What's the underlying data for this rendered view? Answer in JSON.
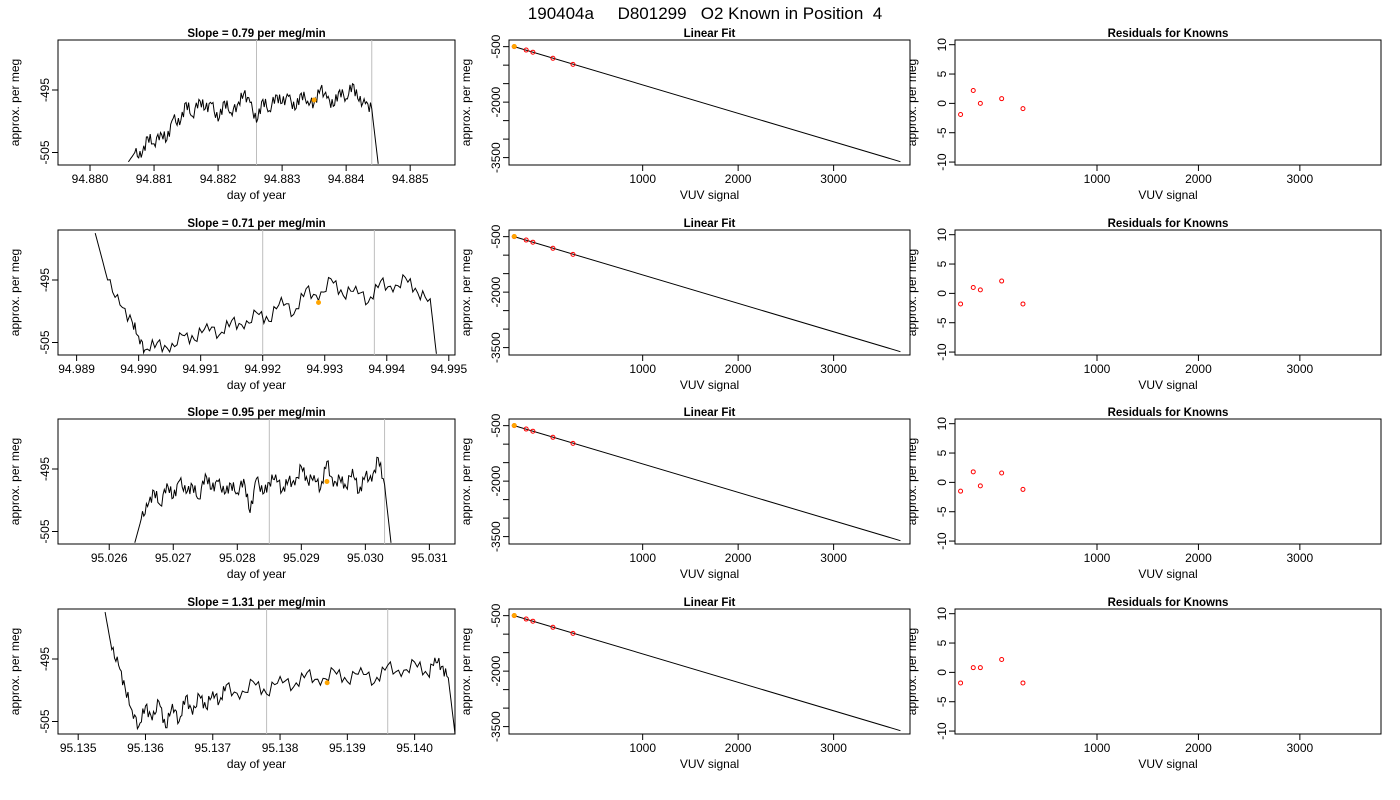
{
  "figure": {
    "title": "190404a     D801299   O2 Known in Position  4"
  },
  "colors": {
    "trace": "#000000",
    "orange": "#FFA500",
    "residual": "#FF0000",
    "vline": "#BEBEBE",
    "frame": "#000000"
  },
  "chart_data": [
    {
      "type": "line",
      "panel": "timeseries-1",
      "title": "Slope =  0.79  per meg/min",
      "xlabel": "day of year",
      "ylabel": "approx. per meg",
      "xlim": [
        94.8795,
        94.8857
      ],
      "ylim": [
        -507,
        -487
      ],
      "xticks": [
        94.88,
        94.881,
        94.882,
        94.883,
        94.884,
        94.885
      ],
      "xtick_labels": [
        "94.880",
        "94.881",
        "94.882",
        "94.883",
        "94.884",
        "94.885"
      ],
      "yticks": [
        -495,
        -505
      ],
      "ytick_labels": [
        "-495",
        "-505"
      ],
      "vlines": [
        94.8826,
        94.8844
      ],
      "trace_start": 94.8806,
      "trace_end": 94.8845,
      "series": [
        {
          "x": [
            94.8806,
            94.8807,
            94.8808,
            94.8809,
            94.881,
            94.8811,
            94.8812,
            94.8813,
            94.8814,
            94.8815,
            94.8816,
            94.8817,
            94.8818,
            94.8819,
            94.882,
            94.8821,
            94.8822,
            94.8823,
            94.8824,
            94.8825,
            94.8826,
            94.8827,
            94.8828,
            94.8829,
            94.883,
            94.8831,
            94.8832,
            94.8833,
            94.8834,
            94.8835,
            94.8836,
            94.8837,
            94.8838,
            94.8839,
            94.884,
            94.8841,
            94.8842,
            94.8843,
            94.8844,
            94.8845
          ],
          "y": [
            -506.5,
            -505.0,
            -505.8,
            -502.5,
            -503.6,
            -501.8,
            -503.0,
            -499.5,
            -500.6,
            -497.0,
            -499.2,
            -496.5,
            -498.0,
            -497.2,
            -500.0,
            -496.8,
            -498.6,
            -497.4,
            -495.6,
            -497.0,
            -500.2,
            -496.5,
            -498.3,
            -495.8,
            -497.1,
            -496.0,
            -498.2,
            -495.5,
            -496.8,
            -497.1,
            -494.8,
            -496.3,
            -497.6,
            -495.0,
            -496.4,
            -494.0,
            -496.8,
            -497.2,
            -498.0,
            -506.8
          ]
        }
      ],
      "markers": [
        {
          "x": 94.8835,
          "y": -496.6
        }
      ]
    },
    {
      "type": "scatter",
      "panel": "linear-fit-1",
      "title": "Linear Fit",
      "xlabel": "VUV signal",
      "ylabel": "approx. per meg",
      "xlim": [
        -400,
        3800
      ],
      "ylim": [
        -3700,
        -320
      ],
      "xticks": [
        1000,
        2000,
        3000
      ],
      "xtick_labels": [
        "1000",
        "2000",
        "3000"
      ],
      "yticks": [
        -500,
        -2000,
        -3500
      ],
      "ytick_labels": [
        "-500",
        "-2000",
        "-3500"
      ],
      "fit_line": {
        "x": [
          -350,
          3700
        ],
        "y": [
          -496,
          -3610
        ]
      },
      "points": {
        "x": [
          -345,
          -220,
          -150,
          60,
          270
        ],
        "y": [
          -498,
          -592,
          -650,
          -815,
          -980
        ]
      },
      "highlight": {
        "x": [
          -345
        ],
        "y": [
          -496
        ]
      }
    },
    {
      "type": "scatter",
      "panel": "residuals-1",
      "title": "Residuals for Knowns",
      "xlabel": "VUV signal",
      "ylabel": "approx. per meg",
      "xlim": [
        -400,
        3800
      ],
      "ylim": [
        -10.5,
        10.8
      ],
      "xticks": [
        1000,
        2000,
        3000
      ],
      "xtick_labels": [
        "1000",
        "2000",
        "3000"
      ],
      "yticks": [
        -10,
        -5,
        0,
        5,
        10
      ],
      "ytick_labels": [
        "-10",
        "-5",
        "0",
        "5",
        "10"
      ],
      "points": {
        "x": [
          -345,
          -220,
          -150,
          60,
          270
        ],
        "y": [
          -1.9,
          2.2,
          0.0,
          0.8,
          -0.9
        ]
      }
    },
    {
      "type": "line",
      "panel": "timeseries-2",
      "title": "Slope =  0.71  per meg/min",
      "xlabel": "day of year",
      "ylabel": "approx. per meg",
      "xlim": [
        94.9887,
        94.9951
      ],
      "ylim": [
        -507,
        -487
      ],
      "xticks": [
        94.989,
        94.99,
        94.991,
        94.992,
        94.993,
        94.994,
        94.995
      ],
      "xtick_labels": [
        "94.989",
        "94.990",
        "94.991",
        "94.992",
        "94.993",
        "94.994",
        "94.995"
      ],
      "yticks": [
        -495,
        -505
      ],
      "ytick_labels": [
        "-495",
        "-505"
      ],
      "vlines": [
        94.992,
        94.9938
      ],
      "trace_start": 94.9893,
      "trace_end": 94.9948,
      "series": [
        {
          "x": [
            94.9893,
            94.9895,
            94.9897,
            94.9899,
            94.99,
            94.9901,
            94.9903,
            94.9905,
            94.9907,
            94.9909,
            94.9911,
            94.9913,
            94.9915,
            94.9917,
            94.9919,
            94.9921,
            94.9923,
            94.9925,
            94.9927,
            94.9929,
            94.9931,
            94.9933,
            94.9935,
            94.9937,
            94.9939,
            94.9941,
            94.9943,
            94.9945,
            94.9947,
            94.9948
          ],
          "y": [
            -487.5,
            -495.0,
            -499.0,
            -501.8,
            -504.0,
            -506.2,
            -505.0,
            -506.5,
            -503.8,
            -504.6,
            -502.0,
            -503.8,
            -501.5,
            -502.8,
            -500.2,
            -501.6,
            -497.8,
            -500.5,
            -496.4,
            -498.3,
            -494.8,
            -497.5,
            -496.0,
            -498.6,
            -495.2,
            -496.9,
            -494.6,
            -497.1,
            -498.0,
            -506.8
          ]
        }
      ],
      "markers": [
        {
          "x": 94.9929,
          "y": -498.6
        }
      ]
    },
    {
      "type": "scatter",
      "panel": "linear-fit-2",
      "title": "Linear Fit",
      "xlabel": "VUV signal",
      "ylabel": "approx. per meg",
      "xlim": [
        -400,
        3800
      ],
      "ylim": [
        -3700,
        -320
      ],
      "xticks": [
        1000,
        2000,
        3000
      ],
      "xtick_labels": [
        "1000",
        "2000",
        "3000"
      ],
      "yticks": [
        -500,
        -2000,
        -3500
      ],
      "ytick_labels": [
        "-500",
        "-2000",
        "-3500"
      ],
      "fit_line": {
        "x": [
          -350,
          3700
        ],
        "y": [
          -496,
          -3610
        ]
      },
      "points": {
        "x": [
          -345,
          -220,
          -150,
          60,
          270
        ],
        "y": [
          -498,
          -592,
          -650,
          -815,
          -980
        ]
      },
      "highlight": {
        "x": [
          -345
        ],
        "y": [
          -496
        ]
      }
    },
    {
      "type": "scatter",
      "panel": "residuals-2",
      "title": "Residuals for Knowns",
      "xlabel": "VUV signal",
      "ylabel": "approx. per meg",
      "xlim": [
        -400,
        3800
      ],
      "ylim": [
        -10.5,
        10.8
      ],
      "xticks": [
        1000,
        2000,
        3000
      ],
      "xtick_labels": [
        "1000",
        "2000",
        "3000"
      ],
      "yticks": [
        -10,
        -5,
        0,
        5,
        10
      ],
      "ytick_labels": [
        "-10",
        "-5",
        "0",
        "5",
        "10"
      ],
      "points": {
        "x": [
          -345,
          -220,
          -150,
          60,
          270
        ],
        "y": [
          -1.8,
          1.0,
          0.6,
          2.1,
          -1.8
        ]
      }
    },
    {
      "type": "line",
      "panel": "timeseries-3",
      "title": "Slope =  0.95  per meg/min",
      "xlabel": "day of year",
      "ylabel": "approx. per meg",
      "xlim": [
        95.0252,
        95.0314
      ],
      "ylim": [
        -507,
        -487
      ],
      "xticks": [
        95.026,
        95.027,
        95.028,
        95.029,
        95.03,
        95.031
      ],
      "xtick_labels": [
        "95.026",
        "95.027",
        "95.028",
        "95.029",
        "95.030",
        "95.031"
      ],
      "yticks": [
        -495,
        -505
      ],
      "ytick_labels": [
        "-495",
        "-505"
      ],
      "vlines": [
        95.0285,
        95.0303
      ],
      "trace_start": 95.0264,
      "trace_end": 95.0304,
      "series": [
        {
          "x": [
            95.0264,
            95.0265,
            95.0266,
            95.0267,
            95.0268,
            95.0269,
            95.027,
            95.0271,
            95.0272,
            95.0273,
            95.0274,
            95.0275,
            95.0276,
            95.0277,
            95.0278,
            95.0279,
            95.028,
            95.0281,
            95.0282,
            95.0283,
            95.0284,
            95.0285,
            95.0286,
            95.0287,
            95.0288,
            95.0289,
            95.029,
            95.0291,
            95.0292,
            95.0293,
            95.0294,
            95.0295,
            95.0296,
            95.0297,
            95.0298,
            95.0299,
            95.03,
            95.0301,
            95.0302,
            95.0303,
            95.0304
          ],
          "y": [
            -506.8,
            -503.0,
            -501.0,
            -498.5,
            -500.8,
            -497.3,
            -499.6,
            -496.8,
            -498.9,
            -497.6,
            -499.8,
            -495.8,
            -498.2,
            -497.0,
            -499.0,
            -497.4,
            -498.8,
            -496.6,
            -502.0,
            -496.5,
            -499.0,
            -497.2,
            -495.9,
            -498.5,
            -496.8,
            -497.6,
            -494.6,
            -497.0,
            -496.0,
            -498.2,
            -493.8,
            -497.8,
            -496.5,
            -497.9,
            -495.0,
            -498.8,
            -496.0,
            -497.0,
            -493.2,
            -497.5,
            -506.8
          ]
        }
      ],
      "markers": [
        {
          "x": 95.0294,
          "y": -497.0
        }
      ]
    },
    {
      "type": "scatter",
      "panel": "linear-fit-3",
      "title": "Linear Fit",
      "xlabel": "VUV signal",
      "ylabel": "approx. per meg",
      "xlim": [
        -400,
        3800
      ],
      "ylim": [
        -3700,
        -320
      ],
      "xticks": [
        1000,
        2000,
        3000
      ],
      "xtick_labels": [
        "1000",
        "2000",
        "3000"
      ],
      "yticks": [
        -500,
        -2000,
        -3500
      ],
      "ytick_labels": [
        "-500",
        "-2000",
        "-3500"
      ],
      "fit_line": {
        "x": [
          -350,
          3700
        ],
        "y": [
          -496,
          -3610
        ]
      },
      "points": {
        "x": [
          -345,
          -220,
          -150,
          60,
          270
        ],
        "y": [
          -498,
          -592,
          -650,
          -815,
          -980
        ]
      },
      "highlight": {
        "x": [
          -345
        ],
        "y": [
          -496
        ]
      }
    },
    {
      "type": "scatter",
      "panel": "residuals-3",
      "title": "Residuals for Knowns",
      "xlabel": "VUV signal",
      "ylabel": "approx. per meg",
      "xlim": [
        -400,
        3800
      ],
      "ylim": [
        -10.5,
        10.8
      ],
      "xticks": [
        1000,
        2000,
        3000
      ],
      "xtick_labels": [
        "1000",
        "2000",
        "3000"
      ],
      "yticks": [
        -10,
        -5,
        0,
        5,
        10
      ],
      "ytick_labels": [
        "-10",
        "-5",
        "0",
        "5",
        "10"
      ],
      "points": {
        "x": [
          -345,
          -220,
          -150,
          60,
          270
        ],
        "y": [
          -1.5,
          1.8,
          -0.6,
          1.6,
          -1.2
        ]
      }
    },
    {
      "type": "line",
      "panel": "timeseries-4",
      "title": "Slope =  1.31  per meg/min",
      "xlabel": "day of year",
      "ylabel": "approx. per meg",
      "xlim": [
        95.1347,
        95.1406
      ],
      "ylim": [
        -507,
        -487
      ],
      "xticks": [
        95.135,
        95.136,
        95.137,
        95.138,
        95.139,
        95.14
      ],
      "xtick_labels": [
        "95.135",
        "95.136",
        "95.137",
        "95.138",
        "95.139",
        "95.140"
      ],
      "yticks": [
        -495,
        -505
      ],
      "ytick_labels": [
        "-495",
        "-505"
      ],
      "vlines": [
        95.1378,
        95.1396
      ],
      "trace_start": 95.1354,
      "trace_end": 95.1406,
      "series": [
        {
          "x": [
            95.1354,
            95.1355,
            95.1356,
            95.1357,
            95.1358,
            95.1359,
            95.136,
            95.1361,
            95.1362,
            95.1363,
            95.1364,
            95.1365,
            95.1366,
            95.1367,
            95.1368,
            95.1369,
            95.137,
            95.1371,
            95.1372,
            95.1374,
            95.1376,
            95.1378,
            95.138,
            95.1382,
            95.1384,
            95.1386,
            95.1388,
            95.139,
            95.1392,
            95.1394,
            95.1396,
            95.1398,
            95.14,
            95.1402,
            95.1403,
            95.1404,
            95.1405,
            95.1406
          ],
          "y": [
            -487.5,
            -493.5,
            -496.0,
            -499.8,
            -503.2,
            -505.8,
            -502.5,
            -504.8,
            -501.8,
            -506.0,
            -502.2,
            -505.0,
            -501.0,
            -503.9,
            -500.8,
            -502.8,
            -500.2,
            -501.8,
            -499.2,
            -501.4,
            -498.6,
            -500.6,
            -497.8,
            -499.5,
            -497.2,
            -499.2,
            -496.8,
            -498.6,
            -496.4,
            -498.8,
            -496.0,
            -497.8,
            -495.5,
            -497.6,
            -494.8,
            -496.2,
            -498.0,
            -507.0
          ]
        }
      ],
      "markers": [
        {
          "x": 95.1387,
          "y": -498.8
        }
      ]
    },
    {
      "type": "scatter",
      "panel": "linear-fit-4",
      "title": "Linear Fit",
      "xlabel": "VUV signal",
      "ylabel": "approx. per meg",
      "xlim": [
        -400,
        3800
      ],
      "ylim": [
        -3700,
        -320
      ],
      "xticks": [
        1000,
        2000,
        3000
      ],
      "xtick_labels": [
        "1000",
        "2000",
        "3000"
      ],
      "yticks": [
        -500,
        -2000,
        -3500
      ],
      "ytick_labels": [
        "-500",
        "-2000",
        "-3500"
      ],
      "fit_line": {
        "x": [
          -350,
          3700
        ],
        "y": [
          -496,
          -3610
        ]
      },
      "points": {
        "x": [
          -345,
          -220,
          -150,
          60,
          270
        ],
        "y": [
          -498,
          -592,
          -650,
          -815,
          -980
        ]
      },
      "highlight": {
        "x": [
          -345
        ],
        "y": [
          -496
        ]
      }
    },
    {
      "type": "scatter",
      "panel": "residuals-4",
      "title": "Residuals for Knowns",
      "xlabel": "VUV signal",
      "ylabel": "approx. per meg",
      "xlim": [
        -400,
        3800
      ],
      "ylim": [
        -10.5,
        10.8
      ],
      "xticks": [
        1000,
        2000,
        3000
      ],
      "xtick_labels": [
        "1000",
        "2000",
        "3000"
      ],
      "yticks": [
        -10,
        -5,
        0,
        5,
        10
      ],
      "ytick_labels": [
        "-10",
        "-5",
        "0",
        "5",
        "10"
      ],
      "points": {
        "x": [
          -345,
          -220,
          -150,
          60,
          270
        ],
        "y": [
          -1.8,
          0.8,
          0.8,
          2.2,
          -1.8
        ]
      }
    }
  ]
}
